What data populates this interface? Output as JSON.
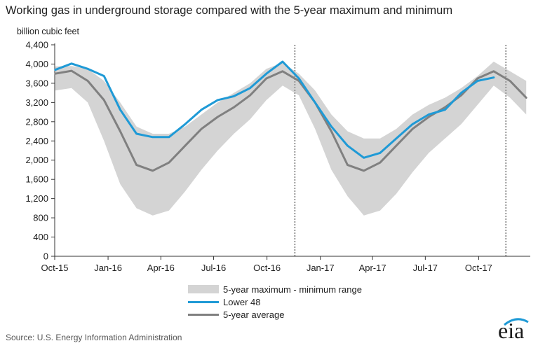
{
  "page": {
    "title": "Working gas in underground  storage compared with the 5-year maximum and minimum",
    "source": "Source:  U.S. Energy Information Administration",
    "logo_text": "eia"
  },
  "colors": {
    "band": "#d4d4d4",
    "lower48": "#1f9ad6",
    "avg": "#808080",
    "axis": "#333333",
    "dotted": "#999999"
  },
  "chart_data": {
    "type": "line",
    "title": "Working gas in underground  storage compared with the 5-year maximum and minimum",
    "ylabel": "billion cubic feet",
    "ylim": [
      0,
      4400
    ],
    "yticks": [
      0,
      400,
      800,
      1200,
      1600,
      2000,
      2400,
      2800,
      3200,
      3600,
      4000,
      4400
    ],
    "ytick_labels": [
      "0",
      "400",
      "800",
      "1,200",
      "1,600",
      "2,000",
      "2,400",
      "2,800",
      "3,200",
      "3,600",
      "4,000",
      "4,400"
    ],
    "xlim": [
      "2015-10-01",
      "2017-12-29"
    ],
    "xticks": [
      "2015-10-01",
      "2016-01-01",
      "2016-04-01",
      "2016-07-01",
      "2016-10-01",
      "2017-01-01",
      "2017-04-01",
      "2017-07-01",
      "2017-10-01"
    ],
    "xtick_labels": [
      "Oct-15",
      "Jan-16",
      "Apr-16",
      "Jul-16",
      "Oct-16",
      "Jan-17",
      "Apr-17",
      "Jul-17",
      "Oct-17"
    ],
    "vlines": [
      "2016-11-18",
      "2017-11-17"
    ],
    "grid": false,
    "legend_position": "bottom-center",
    "legend": [
      "5-year maximum - minimum range",
      "Lower 48",
      "5-year average"
    ],
    "series": [
      {
        "name": "5-year maximum - minimum range",
        "kind": "band",
        "x": [
          "2015-10-02",
          "2015-10-30",
          "2015-11-27",
          "2015-12-25",
          "2016-01-22",
          "2016-02-19",
          "2016-03-18",
          "2016-04-15",
          "2016-05-13",
          "2016-06-10",
          "2016-07-08",
          "2016-08-05",
          "2016-09-02",
          "2016-09-30",
          "2016-10-28",
          "2016-11-25",
          "2016-12-23",
          "2017-01-20",
          "2017-02-17",
          "2017-03-17",
          "2017-04-14",
          "2017-05-12",
          "2017-06-09",
          "2017-07-07",
          "2017-08-04",
          "2017-09-01",
          "2017-09-29",
          "2017-10-27",
          "2017-11-24",
          "2017-12-22"
        ],
        "high": [
          3950,
          3960,
          3900,
          3650,
          3200,
          2700,
          2550,
          2550,
          2700,
          2950,
          3200,
          3400,
          3600,
          3900,
          4030,
          3800,
          3450,
          2950,
          2600,
          2450,
          2450,
          2650,
          2950,
          3150,
          3300,
          3500,
          3750,
          4050,
          3850,
          3650
        ],
        "low": [
          3450,
          3500,
          3200,
          2400,
          1500,
          1000,
          850,
          950,
          1350,
          1800,
          2200,
          2550,
          2850,
          3250,
          3550,
          3350,
          2650,
          1800,
          1250,
          850,
          950,
          1300,
          1750,
          2150,
          2450,
          2750,
          3150,
          3550,
          3300,
          2950
        ]
      },
      {
        "name": "Lower 48",
        "x": [
          "2015-10-02",
          "2015-10-30",
          "2015-11-27",
          "2015-12-25",
          "2016-01-22",
          "2016-02-19",
          "2016-03-18",
          "2016-04-15",
          "2016-05-13",
          "2016-06-10",
          "2016-07-08",
          "2016-08-05",
          "2016-09-02",
          "2016-09-30",
          "2016-10-28",
          "2016-11-25",
          "2016-12-23",
          "2017-01-20",
          "2017-02-17",
          "2017-03-17",
          "2017-04-14",
          "2017-05-12",
          "2017-06-09",
          "2017-07-07",
          "2017-08-04",
          "2017-09-01",
          "2017-09-29",
          "2017-10-27"
        ],
        "values": [
          3880,
          4010,
          3900,
          3750,
          3050,
          2550,
          2480,
          2480,
          2750,
          3050,
          3250,
          3330,
          3500,
          3800,
          4050,
          3700,
          3200,
          2700,
          2300,
          2050,
          2150,
          2450,
          2750,
          2950,
          3050,
          3400,
          3650,
          3720
        ]
      },
      {
        "name": "5-year average",
        "x": [
          "2015-10-02",
          "2015-10-30",
          "2015-11-27",
          "2015-12-25",
          "2016-01-22",
          "2016-02-19",
          "2016-03-18",
          "2016-04-15",
          "2016-05-13",
          "2016-06-10",
          "2016-07-08",
          "2016-08-05",
          "2016-09-02",
          "2016-09-30",
          "2016-10-28",
          "2016-11-25",
          "2016-12-23",
          "2017-01-20",
          "2017-02-17",
          "2017-03-17",
          "2017-04-14",
          "2017-05-12",
          "2017-06-09",
          "2017-07-07",
          "2017-08-04",
          "2017-09-01",
          "2017-09-29",
          "2017-10-27",
          "2017-11-24",
          "2017-12-22"
        ],
        "values": [
          3800,
          3860,
          3650,
          3250,
          2600,
          1900,
          1780,
          1950,
          2300,
          2650,
          2900,
          3100,
          3350,
          3700,
          3850,
          3650,
          3200,
          2600,
          1900,
          1780,
          1950,
          2300,
          2650,
          2900,
          3100,
          3350,
          3700,
          3850,
          3650,
          3300
        ]
      }
    ]
  }
}
